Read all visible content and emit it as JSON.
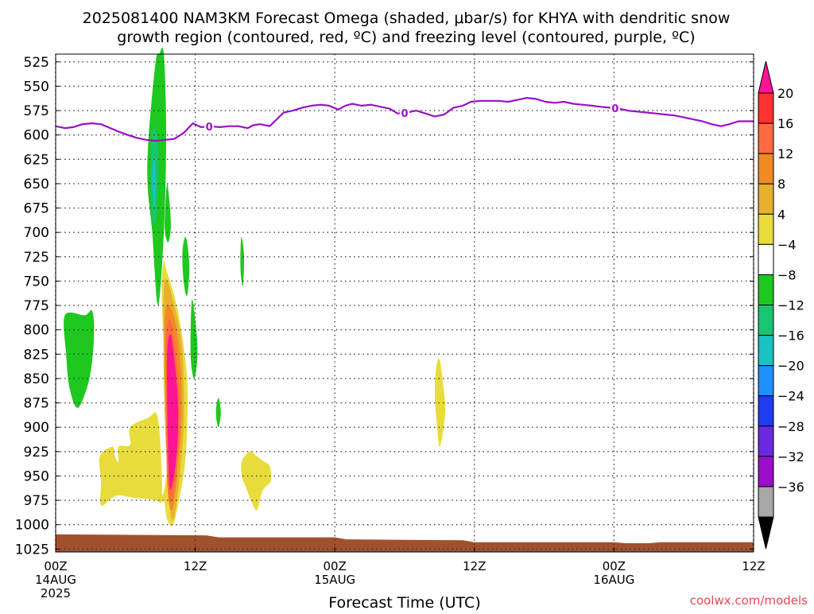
{
  "title_line1": "2025081400 NAM3KM Forecast Omega (shaded, μbar/s) for KHYA with dendritic snow",
  "title_line2": "growth region (contoured, red, ºC) and freezing level (contoured, purple, ºC)",
  "xlabel": "Forecast Time (UTC)",
  "credit": "coolwx.com/models",
  "credit_color": "#e8494f",
  "chart_data": {
    "type": "heatmap",
    "x_unit": "forecast hour",
    "xlim": [
      0,
      60
    ],
    "y_unit": "hPa",
    "ylim": [
      1028,
      517
    ],
    "y_ticks": [
      525,
      550,
      575,
      600,
      625,
      650,
      675,
      700,
      725,
      750,
      775,
      800,
      825,
      850,
      875,
      900,
      925,
      950,
      975,
      1000,
      1025
    ],
    "x_ticks": [
      {
        "hour": 0,
        "lines": [
          "00Z",
          "14AUG",
          "2025"
        ]
      },
      {
        "hour": 12,
        "lines": [
          "12Z"
        ]
      },
      {
        "hour": 24,
        "lines": [
          "00Z",
          "15AUG"
        ]
      },
      {
        "hour": 36,
        "lines": [
          "12Z"
        ]
      },
      {
        "hour": 48,
        "lines": [
          "00Z",
          "16AUG"
        ]
      },
      {
        "hour": 60,
        "lines": [
          "12Z"
        ]
      }
    ],
    "grid": "dotted",
    "colorbar": {
      "labels": [
        "20",
        "16",
        "12",
        "8",
        "4",
        "−4",
        "−8",
        "−12",
        "−16",
        "−20",
        "−24",
        "−28",
        "−32",
        "−36"
      ],
      "bins_top_to_bottom": [
        {
          "color": "#ff1493",
          "shape": "arrow"
        },
        {
          "color": "#ff3030"
        },
        {
          "color": "#ff6a40"
        },
        {
          "color": "#f08a24"
        },
        {
          "color": "#e8b030"
        },
        {
          "color": "#e8dc3c"
        },
        {
          "color": "#ffffff"
        },
        {
          "color": "#1ec81e"
        },
        {
          "color": "#19c472"
        },
        {
          "color": "#1ac2c2"
        },
        {
          "color": "#1e90ff"
        },
        {
          "color": "#1e3cf0"
        },
        {
          "color": "#6a28e0"
        },
        {
          "color": "#9a10c8"
        },
        {
          "color": "#a8a8a8"
        },
        {
          "color": "#000000",
          "shape": "arrow"
        }
      ]
    },
    "freezing_level": {
      "color": "#9a10c8",
      "label": "0",
      "label_hours": [
        13.2,
        30.0,
        48.1
      ],
      "points": [
        [
          0,
          591
        ],
        [
          0.8,
          593
        ],
        [
          1.5,
          592
        ],
        [
          2.3,
          589
        ],
        [
          3.1,
          588
        ],
        [
          3.9,
          589
        ],
        [
          4.7,
          593
        ],
        [
          5.5,
          597
        ],
        [
          6.2,
          600
        ],
        [
          7.0,
          603
        ],
        [
          7.8,
          605
        ],
        [
          8.6,
          606
        ],
        [
          9.4,
          605
        ],
        [
          10.2,
          604
        ],
        [
          11.0,
          598
        ],
        [
          11.8,
          588
        ],
        [
          12.5,
          592
        ],
        [
          13.3,
          591
        ],
        [
          14.1,
          592
        ],
        [
          14.9,
          591
        ],
        [
          15.7,
          591
        ],
        [
          16.5,
          593
        ],
        [
          17.0,
          590
        ],
        [
          17.6,
          589
        ],
        [
          18.4,
          591
        ],
        [
          19.0,
          584
        ],
        [
          19.6,
          577
        ],
        [
          20.4,
          575
        ],
        [
          21.2,
          572
        ],
        [
          22.0,
          570
        ],
        [
          22.8,
          569
        ],
        [
          23.5,
          570
        ],
        [
          24.3,
          574
        ],
        [
          24.9,
          570
        ],
        [
          25.5,
          568
        ],
        [
          26.3,
          570
        ],
        [
          27.1,
          569
        ],
        [
          27.9,
          571
        ],
        [
          28.7,
          573
        ],
        [
          29.4,
          578
        ],
        [
          30.2,
          577
        ],
        [
          31.0,
          575
        ],
        [
          31.8,
          578
        ],
        [
          32.6,
          581
        ],
        [
          33.4,
          579
        ],
        [
          34.2,
          572
        ],
        [
          35.0,
          570
        ],
        [
          35.7,
          566
        ],
        [
          36.5,
          565
        ],
        [
          37.3,
          565
        ],
        [
          38.1,
          565
        ],
        [
          38.9,
          566
        ],
        [
          39.7,
          564
        ],
        [
          40.5,
          562
        ],
        [
          41.3,
          563
        ],
        [
          42.1,
          566
        ],
        [
          42.9,
          567
        ],
        [
          43.7,
          566
        ],
        [
          44.5,
          568
        ],
        [
          45.3,
          569
        ],
        [
          46.1,
          570
        ],
        [
          46.8,
          571
        ],
        [
          47.6,
          572
        ],
        [
          48.4,
          573
        ],
        [
          49.2,
          575
        ],
        [
          50.0,
          576
        ],
        [
          50.8,
          577
        ],
        [
          51.6,
          578
        ],
        [
          52.4,
          579
        ],
        [
          53.2,
          580
        ],
        [
          54.0,
          582
        ],
        [
          54.8,
          584
        ],
        [
          55.6,
          586
        ],
        [
          56.4,
          589
        ],
        [
          57.2,
          591
        ],
        [
          57.9,
          589
        ],
        [
          58.7,
          586
        ],
        [
          59.5,
          586
        ],
        [
          60,
          586
        ]
      ]
    },
    "omega_regions": [
      {
        "value_range": [
          -8,
          -4
        ],
        "color": "#1ec81e",
        "outline": [
          [
            8.0,
            600
          ],
          [
            8.6,
            525
          ],
          [
            8.9,
            517
          ],
          [
            9.3,
            517
          ],
          [
            9.5,
            600
          ],
          [
            9.3,
            700
          ],
          [
            8.8,
            775
          ],
          [
            8.3,
            700
          ],
          [
            7.9,
            650
          ]
        ]
      },
      {
        "value_range": [
          -12,
          -8
        ],
        "color": "#19c472",
        "outline": [
          [
            8.2,
            610
          ],
          [
            8.5,
            590
          ],
          [
            8.8,
            615
          ],
          [
            8.7,
            680
          ],
          [
            8.4,
            690
          ],
          [
            8.2,
            660
          ]
        ]
      },
      {
        "value_range": [
          -16,
          -12
        ],
        "color": "#1ac2c2",
        "outline": [
          [
            8.3,
            635
          ],
          [
            8.5,
            625
          ],
          [
            8.6,
            650
          ],
          [
            8.5,
            675
          ],
          [
            8.35,
            665
          ]
        ]
      },
      {
        "value_range": [
          -8,
          -4
        ],
        "color": "#1ec81e",
        "outline": [
          [
            9.4,
            680
          ],
          [
            9.6,
            650
          ],
          [
            9.9,
            690
          ],
          [
            9.7,
            710
          ],
          [
            9.4,
            700
          ]
        ]
      },
      {
        "value_range": [
          -8,
          -4
        ],
        "color": "#1ec81e",
        "outline": [
          [
            10.9,
            720
          ],
          [
            11.2,
            705
          ],
          [
            11.5,
            735
          ],
          [
            11.3,
            765
          ],
          [
            11.0,
            750
          ]
        ]
      },
      {
        "value_range": [
          -8,
          -4
        ],
        "color": "#1ec81e",
        "outline": [
          [
            11.7,
            770
          ],
          [
            12.0,
            790
          ],
          [
            12.2,
            825
          ],
          [
            11.9,
            850
          ],
          [
            11.6,
            825
          ]
        ]
      },
      {
        "value_range": [
          -8,
          -4
        ],
        "color": "#1ec81e",
        "outline": [
          [
            15.9,
            715
          ],
          [
            16.0,
            705
          ],
          [
            16.2,
            725
          ],
          [
            16.1,
            755
          ],
          [
            15.9,
            740
          ]
        ]
      },
      {
        "value_range": [
          -8,
          -4
        ],
        "color": "#1ec81e",
        "outline": [
          [
            13.8,
            880
          ],
          [
            14.0,
            870
          ],
          [
            14.2,
            885
          ],
          [
            14.0,
            900
          ],
          [
            13.8,
            890
          ]
        ]
      },
      {
        "value_range": [
          -8,
          -4
        ],
        "color": "#1ec81e",
        "outline": [
          [
            0.8,
            785
          ],
          [
            2.5,
            785
          ],
          [
            3.1,
            780
          ],
          [
            3.3,
            795
          ],
          [
            3.2,
            825
          ],
          [
            2.8,
            855
          ],
          [
            1.9,
            880
          ],
          [
            1.2,
            860
          ],
          [
            0.9,
            825
          ]
        ]
      },
      {
        "value_range": [
          4,
          8
        ],
        "color": "#e8dc3c",
        "outline": [
          [
            3.8,
            930
          ],
          [
            4.9,
            920
          ],
          [
            5.1,
            930
          ],
          [
            5.4,
            935
          ],
          [
            5.4,
            920
          ],
          [
            6.4,
            918
          ],
          [
            6.4,
            900
          ],
          [
            8.0,
            890
          ],
          [
            8.6,
            885
          ],
          [
            8.9,
            900
          ],
          [
            9.1,
            940
          ],
          [
            9.2,
            970
          ],
          [
            9.6,
            940
          ],
          [
            9.5,
            900
          ],
          [
            9.3,
            820
          ],
          [
            9.1,
            760
          ],
          [
            9.3,
            730
          ],
          [
            9.5,
            738
          ],
          [
            10.2,
            765
          ],
          [
            10.8,
            800
          ],
          [
            11.3,
            850
          ],
          [
            11.3,
            900
          ],
          [
            11.1,
            940
          ],
          [
            10.6,
            975
          ],
          [
            10.1,
            1000
          ],
          [
            9.6,
            995
          ],
          [
            9.3,
            975
          ],
          [
            9.0,
            978
          ],
          [
            8.6,
            975
          ],
          [
            6.5,
            972
          ],
          [
            5.5,
            970
          ],
          [
            4.9,
            972
          ],
          [
            3.9,
            980
          ],
          [
            3.9,
            955
          ]
        ]
      },
      {
        "value_range": [
          8,
          12
        ],
        "color": "#e8b030",
        "outline": [
          [
            9.3,
            760
          ],
          [
            9.6,
            750
          ],
          [
            10.2,
            775
          ],
          [
            10.8,
            810
          ],
          [
            11.0,
            850
          ],
          [
            11.0,
            900
          ],
          [
            10.7,
            945
          ],
          [
            10.3,
            985
          ],
          [
            10.0,
            995
          ],
          [
            9.7,
            970
          ],
          [
            9.5,
            925
          ],
          [
            9.3,
            850
          ]
        ]
      },
      {
        "value_range": [
          12,
          16
        ],
        "color": "#f08a24",
        "outline": [
          [
            9.4,
            785
          ],
          [
            9.8,
            775
          ],
          [
            10.4,
            800
          ],
          [
            10.8,
            850
          ],
          [
            10.8,
            900
          ],
          [
            10.5,
            940
          ],
          [
            10.2,
            975
          ],
          [
            9.9,
            985
          ],
          [
            9.6,
            960
          ],
          [
            9.5,
            900
          ],
          [
            9.4,
            840
          ]
        ]
      },
      {
        "value_range": [
          16,
          20
        ],
        "color": "#ff6a40",
        "outline": [
          [
            9.5,
            805
          ],
          [
            9.9,
            790
          ],
          [
            10.3,
            820
          ],
          [
            10.6,
            865
          ],
          [
            10.6,
            905
          ],
          [
            10.4,
            940
          ],
          [
            10.1,
            970
          ],
          [
            9.8,
            975
          ],
          [
            9.6,
            945
          ],
          [
            9.5,
            890
          ]
        ]
      },
      {
        "value_range": [
          20,
          24
        ],
        "color": "#ff1493",
        "outline": [
          [
            9.6,
            820
          ],
          [
            9.9,
            805
          ],
          [
            10.2,
            830
          ],
          [
            10.5,
            870
          ],
          [
            10.5,
            910
          ],
          [
            10.3,
            940
          ],
          [
            10.0,
            960
          ],
          [
            9.8,
            962
          ],
          [
            9.7,
            935
          ],
          [
            9.6,
            880
          ]
        ]
      },
      {
        "value_range": [
          4,
          8
        ],
        "color": "#e8dc3c",
        "outline": [
          [
            16.0,
            935
          ],
          [
            16.7,
            925
          ],
          [
            17.3,
            930
          ],
          [
            17.9,
            935
          ],
          [
            18.4,
            940
          ],
          [
            18.5,
            955
          ],
          [
            17.8,
            965
          ],
          [
            17.3,
            985
          ],
          [
            16.8,
            975
          ],
          [
            16.3,
            960
          ],
          [
            16.0,
            950
          ]
        ]
      },
      {
        "value_range": [
          4,
          8
        ],
        "color": "#e8dc3c",
        "outline": [
          [
            32.7,
            840
          ],
          [
            33.0,
            830
          ],
          [
            33.3,
            855
          ],
          [
            33.5,
            880
          ],
          [
            33.3,
            905
          ],
          [
            33.0,
            920
          ],
          [
            32.8,
            900
          ],
          [
            32.6,
            870
          ]
        ]
      }
    ],
    "terrain": {
      "color": "#a0522d",
      "top_points": [
        [
          0,
          1010
        ],
        [
          13,
          1011
        ],
        [
          14,
          1013
        ],
        [
          24,
          1013
        ],
        [
          25,
          1015
        ],
        [
          35,
          1016
        ],
        [
          36,
          1018
        ],
        [
          48,
          1018
        ],
        [
          49,
          1019
        ],
        [
          51,
          1019
        ],
        [
          52,
          1018
        ],
        [
          60,
          1018
        ]
      ]
    }
  }
}
